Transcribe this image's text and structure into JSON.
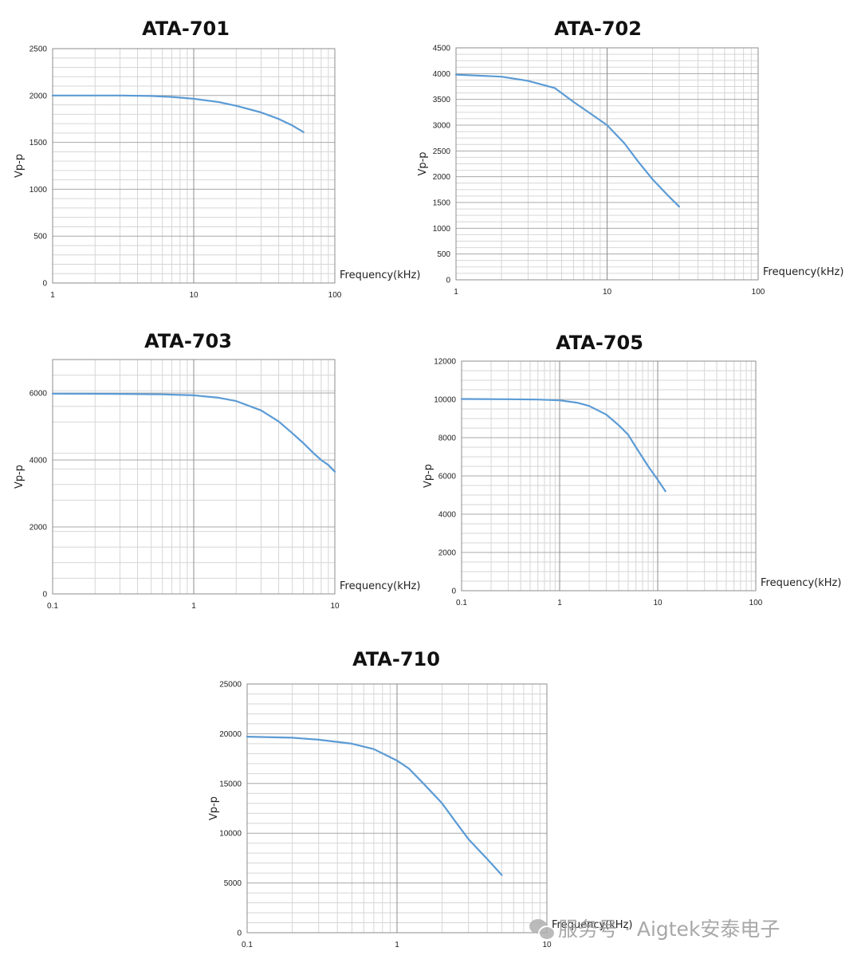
{
  "chart_data": [
    {
      "type": "line",
      "title": "ATA-701",
      "xlabel": "Frequency(kHz)",
      "ylabel": "Vp-p",
      "xscale": "log",
      "xlim": [
        1,
        100
      ],
      "ylim": [
        0,
        2500
      ],
      "xticks": [
        "1",
        "10",
        "100"
      ],
      "yticks": [
        "0",
        "500",
        "1000",
        "1500",
        "2000",
        "2500"
      ],
      "grid": true,
      "series": [
        {
          "color": "#5b9bd5",
          "x": [
            1,
            2,
            3,
            5,
            7,
            10,
            15,
            20,
            30,
            40,
            50,
            60
          ],
          "y": [
            2000,
            2000,
            2000,
            1995,
            1985,
            1965,
            1930,
            1890,
            1820,
            1750,
            1680,
            1610
          ]
        }
      ]
    },
    {
      "type": "line",
      "title": "ATA-702",
      "xlabel": "Frequency(kHz)",
      "ylabel": "Vp-p",
      "xscale": "log",
      "xlim": [
        1,
        100
      ],
      "ylim": [
        0,
        4500
      ],
      "xticks": [
        "1",
        "10",
        "100"
      ],
      "yticks": [
        "0",
        "500",
        "1000",
        "1500",
        "2000",
        "2500",
        "3000",
        "3500",
        "4000",
        "4500"
      ],
      "grid": true,
      "series": [
        {
          "color": "#5b9bd5",
          "x": [
            1,
            2,
            3,
            4.5,
            6,
            8,
            10,
            13,
            16,
            20,
            25,
            30
          ],
          "y": [
            3980,
            3940,
            3860,
            3720,
            3450,
            3200,
            3000,
            2650,
            2300,
            1950,
            1650,
            1420
          ]
        }
      ]
    },
    {
      "type": "line",
      "title": "ATA-703",
      "xlabel": "Frequency(kHz)",
      "ylabel": "Vp-p",
      "xscale": "log",
      "xlim": [
        0.1,
        10
      ],
      "ylim": [
        0,
        7000
      ],
      "xticks": [
        "0.1",
        "1",
        "10"
      ],
      "yticks": [
        "0",
        "2000",
        "4000",
        "6000"
      ],
      "grid": true,
      "series": [
        {
          "color": "#5b9bd5",
          "x": [
            0.1,
            0.3,
            0.6,
            1,
            1.5,
            2,
            3,
            4,
            5,
            6,
            7,
            8,
            9,
            10
          ],
          "y": [
            5980,
            5975,
            5960,
            5930,
            5860,
            5760,
            5480,
            5150,
            4800,
            4500,
            4220,
            4000,
            3850,
            3650
          ]
        }
      ]
    },
    {
      "type": "line",
      "title": "ATA-705",
      "xlabel": "Frequency(kHz)",
      "ylabel": "Vp-p",
      "xscale": "log",
      "xlim": [
        0.1,
        100
      ],
      "ylim": [
        0,
        12000
      ],
      "xticks": [
        "0.1",
        "1",
        "10",
        "100"
      ],
      "yticks": [
        "0",
        "2000",
        "4000",
        "6000",
        "8000",
        "10000",
        "12000"
      ],
      "grid": true,
      "series": [
        {
          "color": "#5b9bd5",
          "x": [
            0.1,
            0.3,
            0.6,
            1,
            1.5,
            2,
            3,
            4,
            5,
            6,
            8,
            10,
            12
          ],
          "y": [
            10020,
            10010,
            9990,
            9950,
            9830,
            9660,
            9200,
            8650,
            8150,
            7500,
            6500,
            5800,
            5200
          ]
        }
      ]
    },
    {
      "type": "line",
      "title": "ATA-710",
      "xlabel": "Frequency(kHz)",
      "ylabel": "Vp-p",
      "xscale": "log",
      "xlim": [
        0.1,
        10
      ],
      "ylim": [
        0,
        25000
      ],
      "xticks": [
        "0.1",
        "1",
        "10"
      ],
      "yticks": [
        "0",
        "5000",
        "10000",
        "15000",
        "20000",
        "25000"
      ],
      "grid": true,
      "series": [
        {
          "color": "#5b9bd5",
          "x": [
            0.1,
            0.2,
            0.3,
            0.5,
            0.7,
            1,
            1.2,
            1.5,
            2,
            2.5,
            3,
            4,
            5
          ],
          "y": [
            19700,
            19600,
            19400,
            19000,
            18450,
            17300,
            16500,
            15000,
            13000,
            11000,
            9400,
            7400,
            5800
          ]
        }
      ]
    }
  ],
  "watermark": {
    "icon": "wechat-icon",
    "text": "服务号 · Aigtek安泰电子"
  }
}
